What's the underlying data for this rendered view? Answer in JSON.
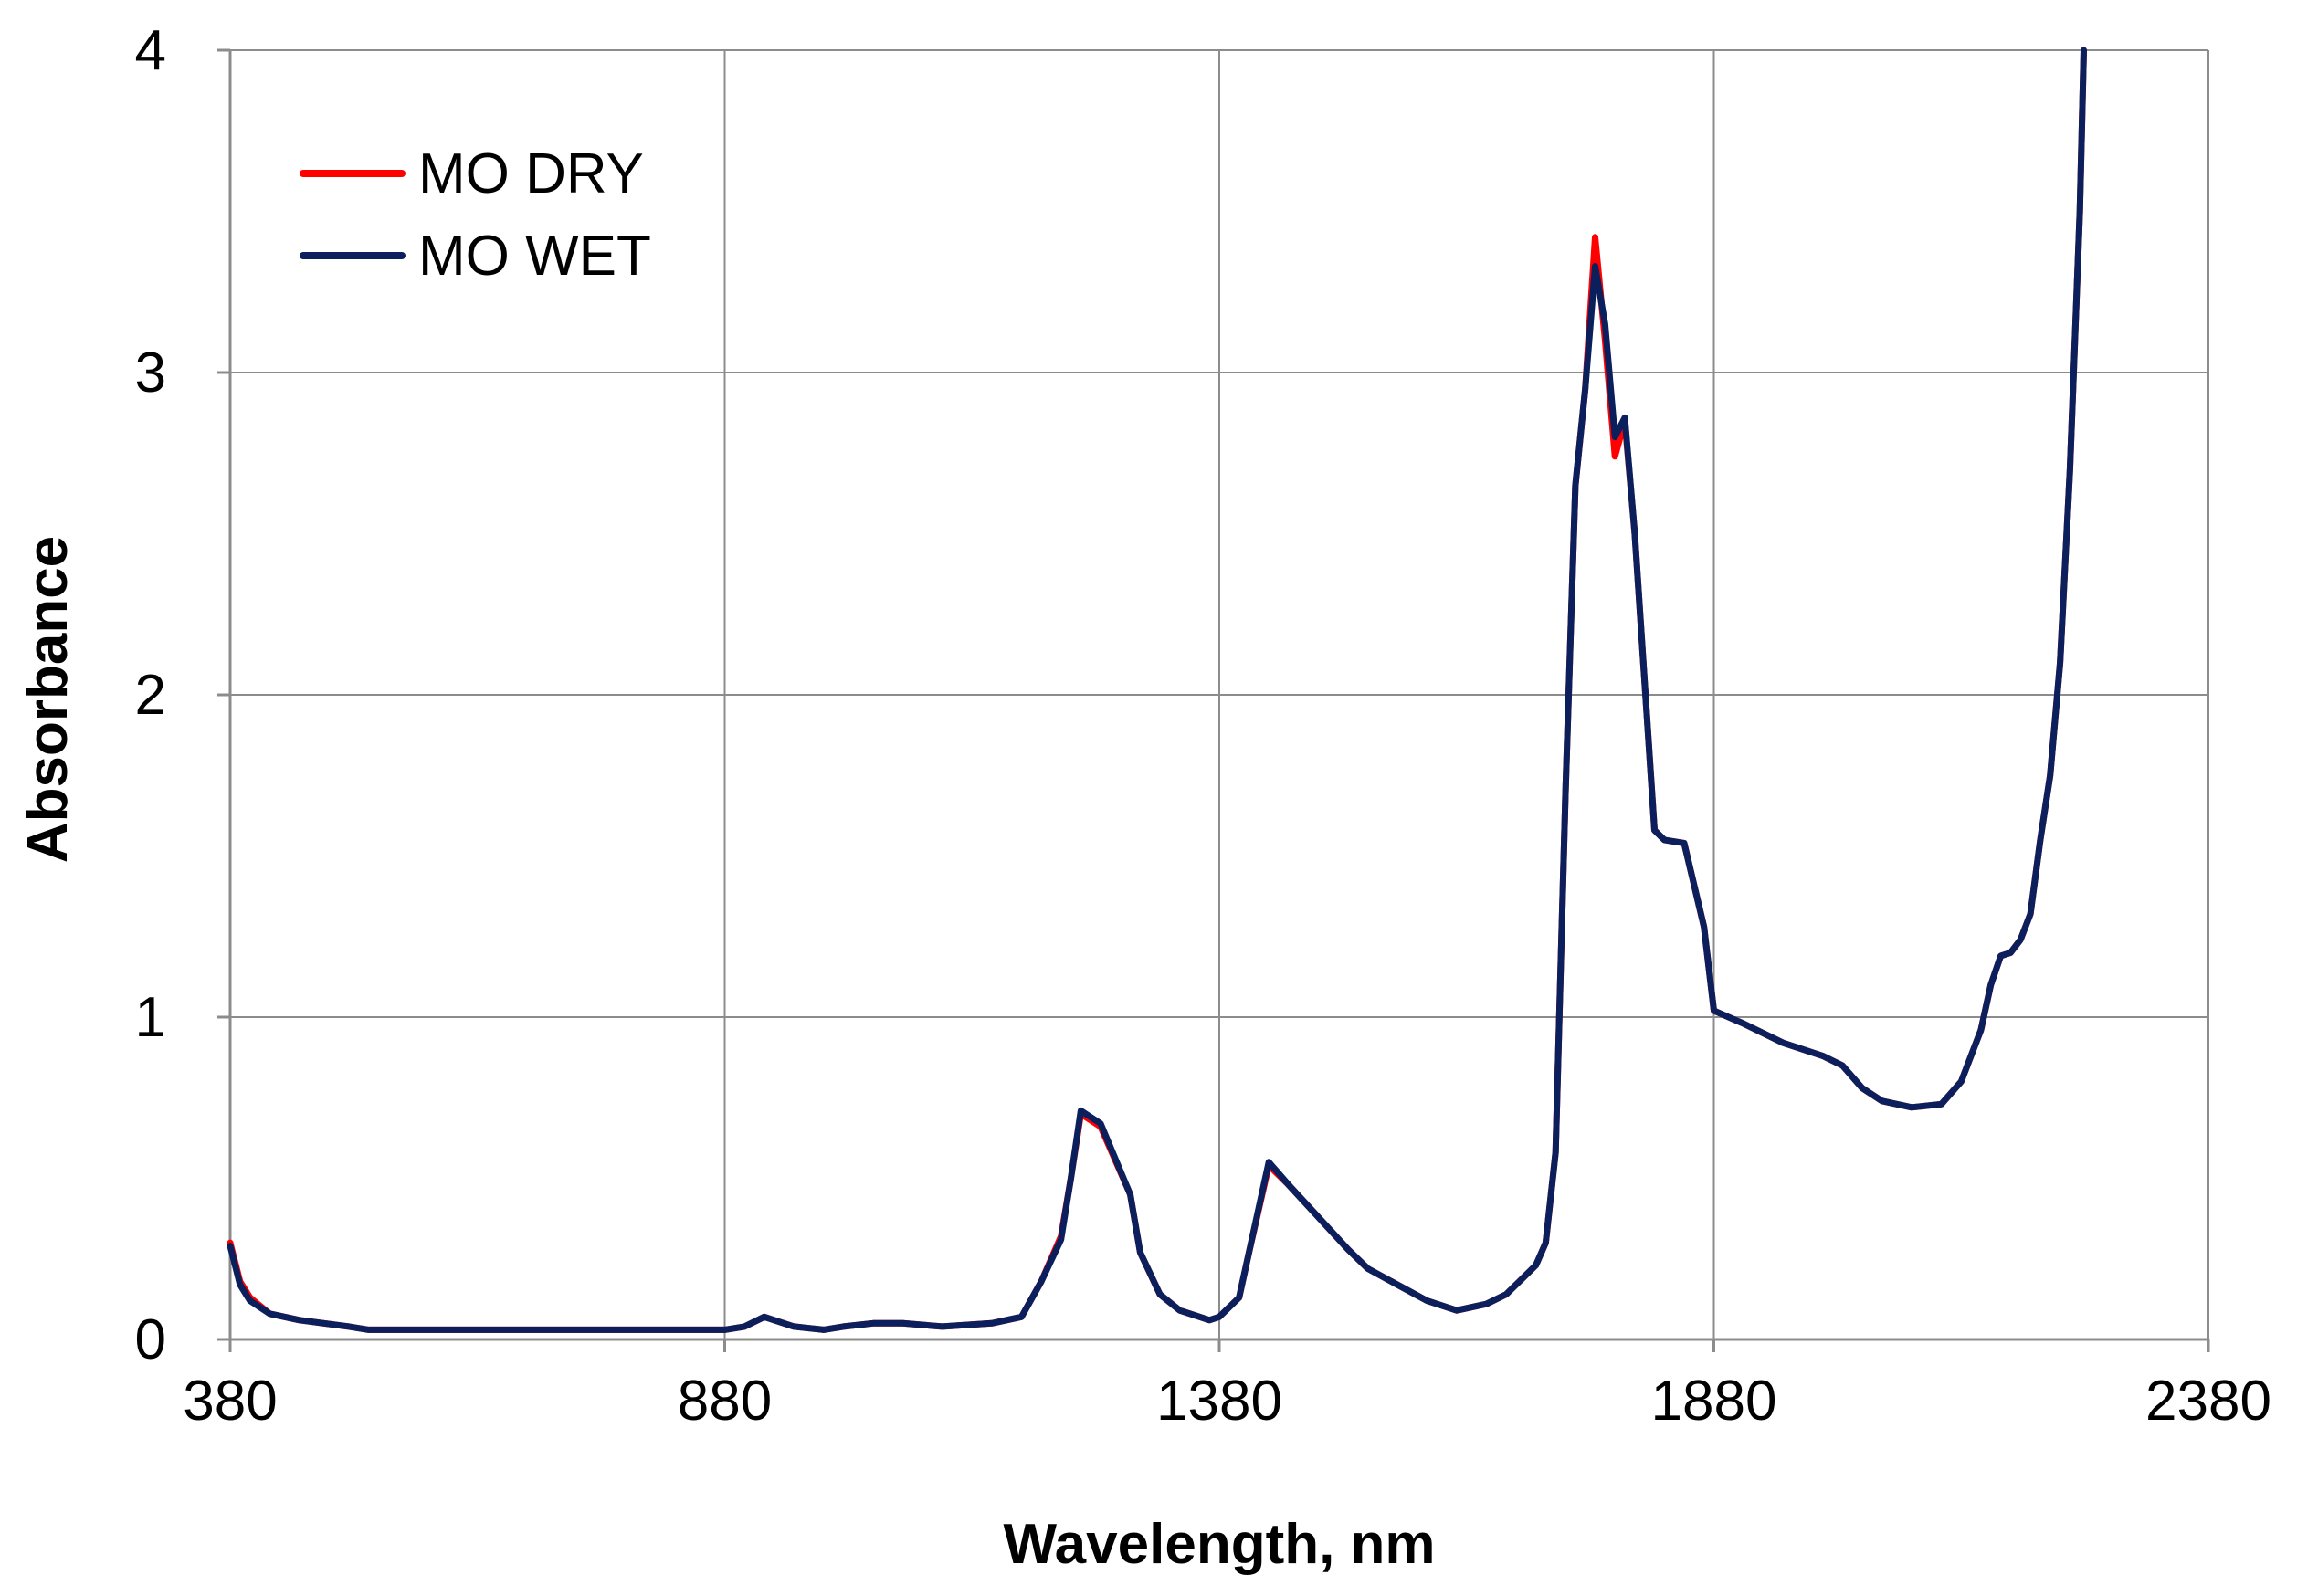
{
  "chart_data": {
    "type": "line",
    "title": "",
    "xlabel": "Wavelength, nm",
    "ylabel": "Absorbance",
    "xlim": [
      380,
      2380
    ],
    "ylim": [
      0,
      4
    ],
    "xticks": [
      380,
      880,
      1380,
      1880,
      2380
    ],
    "yticks": [
      0,
      1,
      2,
      3,
      4
    ],
    "grid": true,
    "legend_position": "top-left",
    "series": [
      {
        "name": "MO DRY",
        "color": "#ff0000",
        "x": [
          380,
          390,
          400,
          420,
          450,
          500,
          520,
          600,
          700,
          800,
          880,
          900,
          920,
          950,
          980,
          1000,
          1030,
          1060,
          1100,
          1150,
          1180,
          1200,
          1220,
          1230,
          1240,
          1260,
          1290,
          1300,
          1320,
          1340,
          1370,
          1380,
          1400,
          1410,
          1430,
          1450,
          1480,
          1510,
          1530,
          1560,
          1590,
          1620,
          1650,
          1670,
          1700,
          1710,
          1720,
          1730,
          1740,
          1750,
          1760,
          1770,
          1780,
          1790,
          1800,
          1820,
          1830,
          1850,
          1870,
          1880,
          1910,
          1950,
          1990,
          2010,
          2030,
          2050,
          2080,
          2110,
          2130,
          2150,
          2160,
          2170,
          2180,
          2190,
          2200,
          2210,
          2220,
          2230,
          2240,
          2250,
          2254
        ],
        "y": [
          0.3,
          0.18,
          0.13,
          0.08,
          0.06,
          0.04,
          0.03,
          0.03,
          0.03,
          0.03,
          0.03,
          0.04,
          0.07,
          0.04,
          0.03,
          0.04,
          0.05,
          0.05,
          0.04,
          0.05,
          0.07,
          0.18,
          0.32,
          0.5,
          0.7,
          0.66,
          0.45,
          0.27,
          0.14,
          0.09,
          0.06,
          0.07,
          0.13,
          0.27,
          0.54,
          0.48,
          0.38,
          0.28,
          0.22,
          0.17,
          0.12,
          0.09,
          0.11,
          0.14,
          0.23,
          0.3,
          0.58,
          1.7,
          2.65,
          2.95,
          3.42,
          3.1,
          2.74,
          2.85,
          2.5,
          1.58,
          1.55,
          1.54,
          1.28,
          1.02,
          0.98,
          0.92,
          0.88,
          0.85,
          0.78,
          0.74,
          0.72,
          0.73,
          0.8,
          0.96,
          1.1,
          1.19,
          1.2,
          1.24,
          1.32,
          1.55,
          1.75,
          2.1,
          2.7,
          3.5,
          4.0
        ]
      },
      {
        "name": "MO WET",
        "color": "#0b1f5c",
        "x": [
          380,
          390,
          400,
          420,
          450,
          500,
          520,
          600,
          700,
          800,
          880,
          900,
          920,
          950,
          980,
          1000,
          1030,
          1060,
          1100,
          1150,
          1180,
          1200,
          1220,
          1230,
          1240,
          1260,
          1290,
          1300,
          1320,
          1340,
          1370,
          1380,
          1400,
          1410,
          1430,
          1450,
          1480,
          1510,
          1530,
          1560,
          1590,
          1620,
          1650,
          1670,
          1700,
          1710,
          1720,
          1730,
          1740,
          1750,
          1760,
          1770,
          1780,
          1790,
          1800,
          1820,
          1830,
          1850,
          1870,
          1880,
          1910,
          1950,
          1990,
          2010,
          2030,
          2050,
          2080,
          2110,
          2130,
          2150,
          2160,
          2170,
          2180,
          2190,
          2200,
          2210,
          2220,
          2230,
          2240,
          2250,
          2254
        ],
        "y": [
          0.29,
          0.17,
          0.12,
          0.08,
          0.06,
          0.04,
          0.03,
          0.03,
          0.03,
          0.03,
          0.03,
          0.04,
          0.07,
          0.04,
          0.03,
          0.04,
          0.05,
          0.05,
          0.04,
          0.05,
          0.07,
          0.18,
          0.31,
          0.5,
          0.71,
          0.67,
          0.45,
          0.27,
          0.14,
          0.09,
          0.06,
          0.07,
          0.13,
          0.27,
          0.55,
          0.48,
          0.38,
          0.28,
          0.22,
          0.17,
          0.12,
          0.09,
          0.11,
          0.14,
          0.23,
          0.3,
          0.58,
          1.7,
          2.65,
          2.95,
          3.33,
          3.15,
          2.8,
          2.86,
          2.5,
          1.58,
          1.55,
          1.54,
          1.28,
          1.02,
          0.98,
          0.92,
          0.88,
          0.85,
          0.78,
          0.74,
          0.72,
          0.73,
          0.8,
          0.96,
          1.1,
          1.19,
          1.2,
          1.24,
          1.32,
          1.55,
          1.75,
          2.1,
          2.7,
          3.5,
          4.0
        ]
      }
    ]
  }
}
